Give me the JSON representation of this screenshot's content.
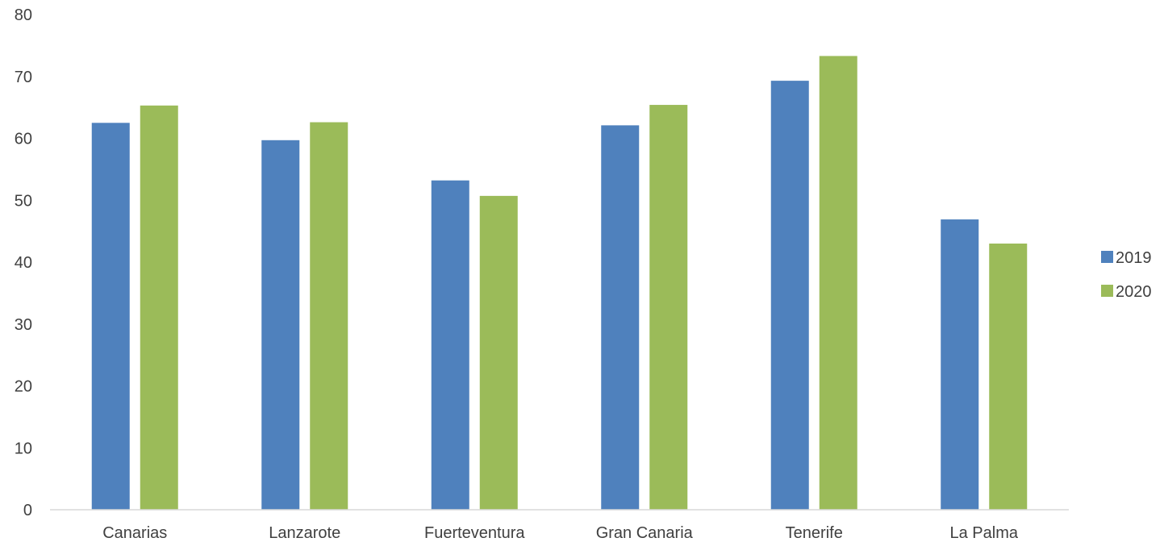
{
  "chart_data": {
    "type": "bar",
    "categories": [
      "Canarias",
      "Lanzarote",
      "Fuerteventura",
      "Gran Canaria",
      "Tenerife",
      "La Palma"
    ],
    "series": [
      {
        "name": "2019",
        "color": "#4f81bd",
        "values": [
          62.5,
          59.7,
          53.2,
          62.1,
          69.3,
          46.9
        ]
      },
      {
        "name": "2020",
        "color": "#9bbb59",
        "values": [
          65.3,
          62.6,
          50.7,
          65.4,
          73.3,
          43.0
        ]
      }
    ],
    "ylim": [
      0,
      80
    ],
    "yticks": [
      0,
      10,
      20,
      30,
      40,
      50,
      60,
      70,
      80
    ],
    "grid": false,
    "legend_position": "right",
    "title": "",
    "xlabel": "",
    "ylabel": ""
  }
}
